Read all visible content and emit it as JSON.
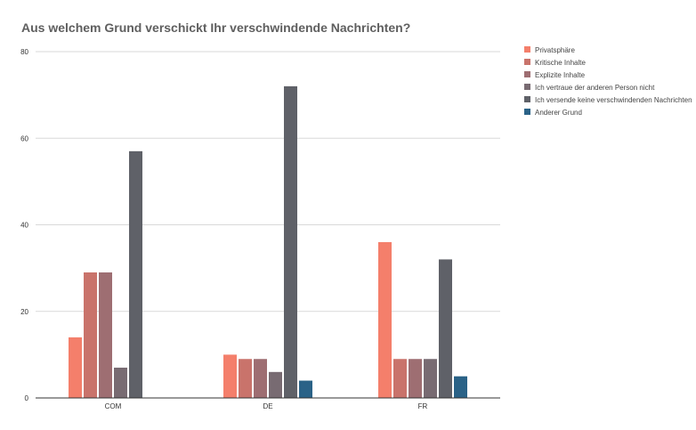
{
  "chart_data": {
    "type": "bar",
    "title": "Aus welchem Grund verschickt Ihr verschwindende Nachrichten?",
    "xlabel": "",
    "ylabel": "",
    "ylim": [
      0,
      80
    ],
    "yticks": [
      "0",
      "20",
      "40",
      "60",
      "80"
    ],
    "grid": true,
    "legend_position": "right",
    "categories": [
      "COM",
      "DE",
      "FR"
    ],
    "series": [
      {
        "name": "Privatsphäre",
        "color": "#f47f6b",
        "values": [
          14,
          10,
          36
        ]
      },
      {
        "name": "Kritische Inhalte",
        "color": "#c9736b",
        "values": [
          29,
          9,
          9
        ]
      },
      {
        "name": "Explizite Inhalte",
        "color": "#9e6e72",
        "values": [
          29,
          9,
          9
        ]
      },
      {
        "name": "Ich vertraue der anderen Person nicht",
        "color": "#786b72",
        "values": [
          7,
          6,
          9
        ]
      },
      {
        "name": "Ich versende keine verschwindenden Nachrichten",
        "color": "#5f6168",
        "values": [
          57,
          72,
          32
        ]
      },
      {
        "name": "Anderer Grund",
        "color": "#2a6287",
        "values": [
          0,
          4,
          5
        ]
      }
    ]
  }
}
